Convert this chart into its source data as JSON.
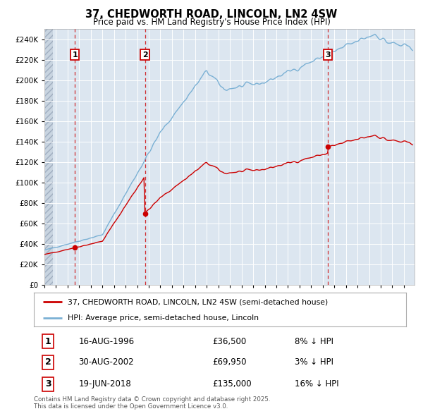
{
  "title": "37, CHEDWORTH ROAD, LINCOLN, LN2 4SW",
  "subtitle": "Price paid vs. HM Land Registry's House Price Index (HPI)",
  "ylim": [
    0,
    250000
  ],
  "yticks": [
    0,
    20000,
    40000,
    60000,
    80000,
    100000,
    120000,
    140000,
    160000,
    180000,
    200000,
    220000,
    240000
  ],
  "xlim_start": 1994.0,
  "xlim_end": 2025.92,
  "background_color": "#ffffff",
  "plot_bg_color": "#dce6f0",
  "grid_color": "#ffffff",
  "red_line_color": "#cc0000",
  "blue_line_color": "#7ab0d4",
  "dashed_line_color": "#cc0000",
  "hatch_end": 1994.75,
  "sale_points": [
    {
      "year": 1996.625,
      "price": 36500,
      "label": "1"
    },
    {
      "year": 2002.665,
      "price": 69950,
      "label": "2"
    },
    {
      "year": 2018.465,
      "price": 135000,
      "label": "3"
    }
  ],
  "legend_line1": "37, CHEDWORTH ROAD, LINCOLN, LN2 4SW (semi-detached house)",
  "legend_line2": "HPI: Average price, semi-detached house, Lincoln",
  "table_entries": [
    {
      "num": "1",
      "date": "16-AUG-1996",
      "price": "£36,500",
      "note": "8% ↓ HPI"
    },
    {
      "num": "2",
      "date": "30-AUG-2002",
      "price": "£69,950",
      "note": "3% ↓ HPI"
    },
    {
      "num": "3",
      "date": "19-JUN-2018",
      "price": "£135,000",
      "note": "16% ↓ HPI"
    }
  ],
  "footer": "Contains HM Land Registry data © Crown copyright and database right 2025.\nThis data is licensed under the Open Government Licence v3.0."
}
